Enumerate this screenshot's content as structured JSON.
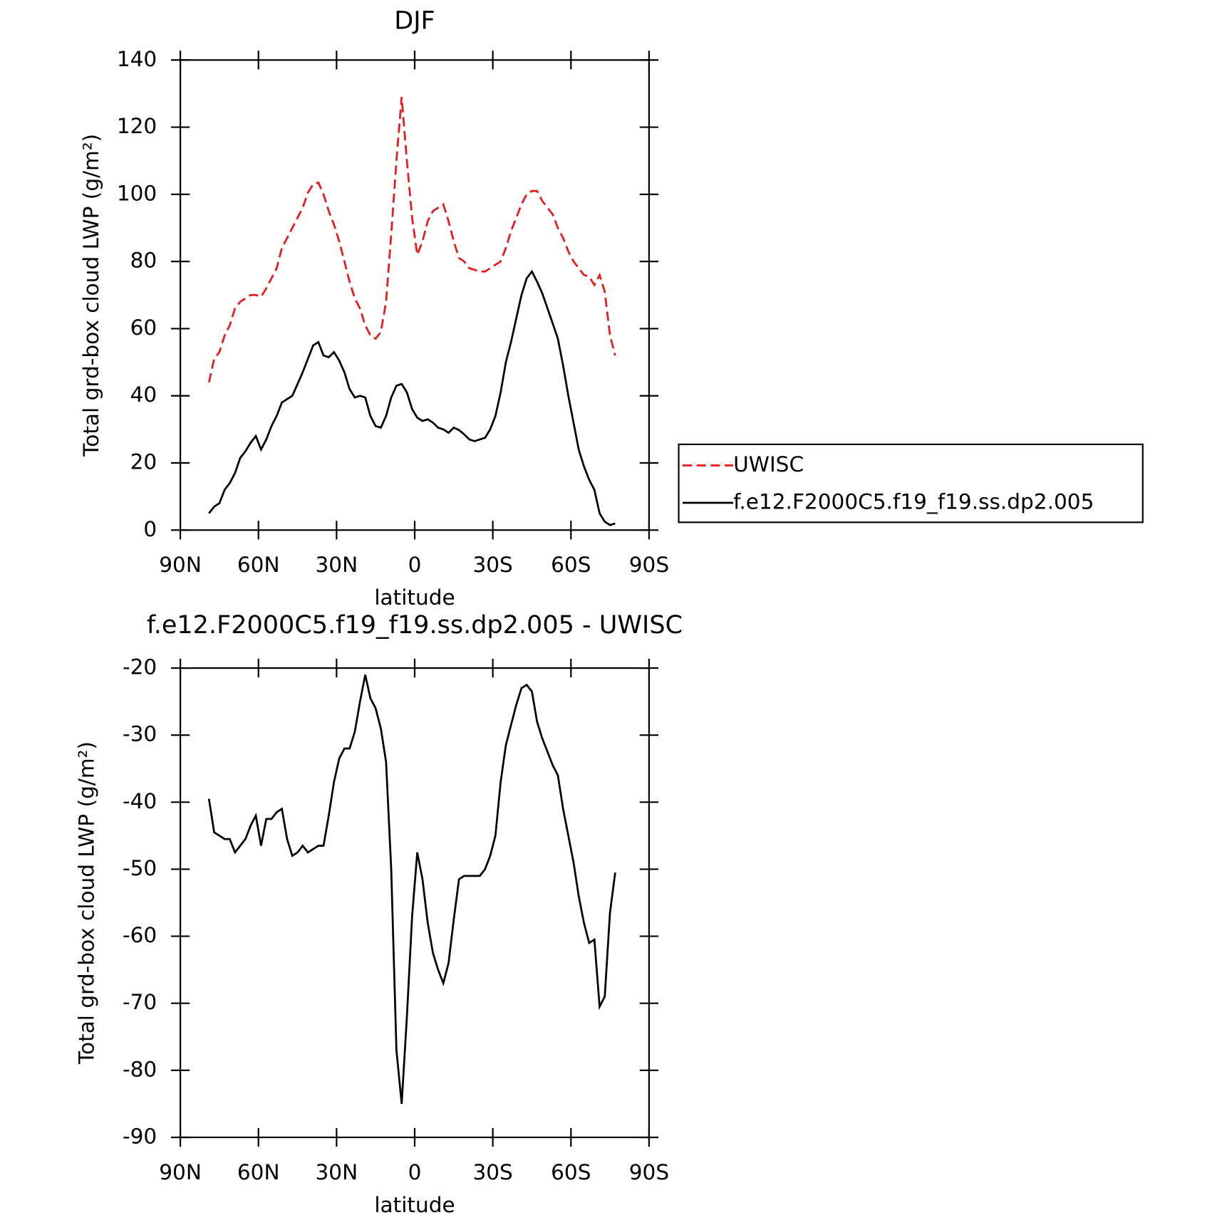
{
  "chart_data": [
    {
      "type": "line",
      "title": "DJF",
      "xlabel": "latitude",
      "ylabel": "Total grd-box cloud LWP (g/m²)",
      "x": [
        79,
        77,
        75,
        73,
        71,
        69,
        67,
        65,
        63,
        61,
        59,
        57,
        55,
        53,
        51,
        49,
        47,
        45,
        43,
        41,
        39,
        37,
        35,
        33,
        31,
        29,
        27,
        25,
        23,
        21,
        19,
        17,
        15,
        13,
        11,
        9,
        7,
        5,
        3,
        1,
        -1,
        -3,
        -5,
        -7,
        -9,
        -11,
        -13,
        -15,
        -17,
        -19,
        -21,
        -23,
        -25,
        -27,
        -29,
        -31,
        -33,
        -35,
        -37,
        -39,
        -41,
        -43,
        -45,
        -47,
        -49,
        -51,
        -53,
        -55,
        -57,
        -59,
        -61,
        -63,
        -65,
        -67,
        -69,
        -71,
        -73,
        -75,
        -77
      ],
      "xlim": [
        90,
        -90
      ],
      "xticks": [
        {
          "value": 90,
          "label": "90N"
        },
        {
          "value": 60,
          "label": "60N"
        },
        {
          "value": 30,
          "label": "30N"
        },
        0,
        {
          "value": -30,
          "label": "30S"
        },
        {
          "value": -60,
          "label": "60S"
        },
        {
          "value": -90,
          "label": "90S"
        }
      ],
      "ylim": [
        0,
        140
      ],
      "yticks": [
        0,
        20,
        40,
        60,
        80,
        100,
        120,
        140
      ],
      "legend": "right",
      "series": [
        {
          "name": "UWISC",
          "color": "#e8191b",
          "style": "dashed",
          "values": [
            44,
            51,
            53,
            58,
            61,
            66,
            68,
            69,
            70,
            70,
            69.5,
            72,
            75,
            78,
            84,
            87,
            90,
            93,
            96,
            100.5,
            103,
            103.5,
            100,
            95,
            91,
            86,
            80,
            74,
            69,
            66,
            61,
            58,
            57,
            59,
            68,
            88,
            110,
            129,
            110,
            93,
            82,
            86,
            92,
            95,
            96,
            97,
            92,
            86,
            81,
            80,
            78,
            77.5,
            77,
            77,
            78,
            79,
            80,
            84,
            89,
            93,
            97,
            100,
            101,
            101,
            98,
            96,
            94,
            90,
            87,
            83,
            80,
            78,
            76,
            75.5,
            73,
            76,
            71,
            58,
            52
          ]
        },
        {
          "name": "f.e12.F2000C5.f19_f19.ss.dp2.005",
          "color": "#000000",
          "style": "solid",
          "values": [
            5,
            7,
            8,
            12,
            14,
            17,
            21.5,
            23.5,
            26,
            28,
            24,
            27,
            31,
            34,
            38,
            39,
            40,
            43.5,
            47,
            51,
            55,
            56,
            52,
            51.5,
            53,
            50.5,
            47,
            42,
            39.5,
            40,
            39.5,
            34,
            31,
            30.5,
            34,
            39.5,
            43,
            43.5,
            41,
            36,
            33.5,
            32.5,
            33,
            32,
            30.5,
            30,
            29,
            30.5,
            29.8,
            28.5,
            27,
            26.5,
            27,
            27.5,
            30,
            34,
            41,
            50,
            56,
            63,
            70,
            75,
            77,
            74,
            70.5,
            66,
            61.5,
            57,
            49,
            40,
            32,
            24,
            19,
            15,
            12,
            5,
            2.5,
            1.5,
            2
          ]
        }
      ]
    },
    {
      "type": "line",
      "title": "f.e12.F2000C5.f19_f19.ss.dp2.005 - UWISC",
      "xlabel": "latitude",
      "ylabel": "Total grd-box cloud LWP (g/m²)",
      "x": [
        79,
        77,
        75,
        73,
        71,
        69,
        67,
        65,
        63,
        61,
        59,
        57,
        55,
        53,
        51,
        49,
        47,
        45,
        43,
        41,
        39,
        37,
        35,
        33,
        31,
        29,
        27,
        25,
        23,
        21,
        19,
        17,
        15,
        13,
        11,
        9,
        7,
        5,
        3,
        1,
        -1,
        -3,
        -5,
        -7,
        -9,
        -11,
        -13,
        -15,
        -17,
        -19,
        -21,
        -23,
        -25,
        -27,
        -29,
        -31,
        -33,
        -35,
        -37,
        -39,
        -41,
        -43,
        -45,
        -47,
        -49,
        -51,
        -53,
        -55,
        -57,
        -59,
        -61,
        -63,
        -65,
        -67,
        -69,
        -71,
        -73,
        -75,
        -77
      ],
      "xlim": [
        90,
        -90
      ],
      "xticks": [
        {
          "value": 90,
          "label": "90N"
        },
        {
          "value": 60,
          "label": "60N"
        },
        {
          "value": 30,
          "label": "30N"
        },
        0,
        {
          "value": -30,
          "label": "30S"
        },
        {
          "value": -60,
          "label": "60S"
        },
        {
          "value": -90,
          "label": "90S"
        }
      ],
      "ylim": [
        -90,
        -20
      ],
      "yticks": [
        -90,
        -80,
        -70,
        -60,
        -50,
        -40,
        -30,
        -20
      ],
      "series": [
        {
          "color": "#000000",
          "style": "solid",
          "values": [
            -39.5,
            -44.5,
            -45,
            -45.5,
            -45.5,
            -47.5,
            -46.5,
            -45.5,
            -43.5,
            -42,
            -46.5,
            -42.5,
            -42.5,
            -41.5,
            -41,
            -45.5,
            -48,
            -47.5,
            -46.5,
            -47.5,
            -47,
            -46.5,
            -46.5,
            -42,
            -37,
            -33.5,
            -32,
            -32,
            -29.5,
            -25,
            -21,
            -24.5,
            -26,
            -29,
            -34,
            -50,
            -77,
            -85,
            -72,
            -57,
            -47.5,
            -51.5,
            -58,
            -62.5,
            -65,
            -67,
            -64,
            -57.5,
            -51.5,
            -51,
            -51,
            -51,
            -51,
            -50,
            -48,
            -45,
            -37,
            -31.5,
            -28.5,
            -25.5,
            -23,
            -22.5,
            -23.5,
            -28,
            -30.5,
            -32.5,
            -34.5,
            -36,
            -41,
            -45,
            -49,
            -54,
            -58,
            -61,
            -60.5,
            -70.5,
            -69,
            -56.5,
            -50.5
          ]
        }
      ]
    }
  ]
}
